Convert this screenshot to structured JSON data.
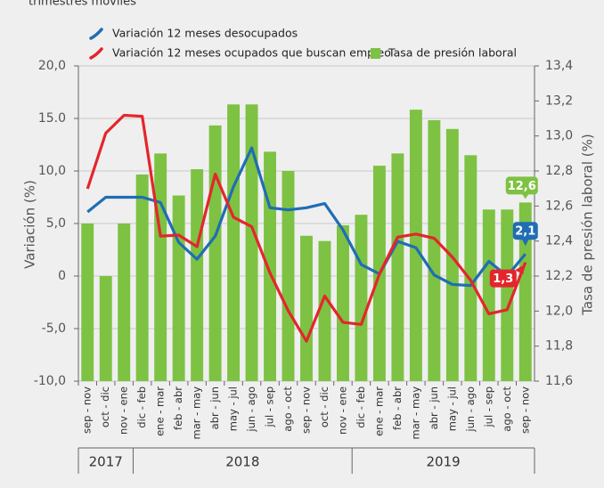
{
  "chart_data": {
    "type": "bar_line",
    "subtitle": "trimestres móviles",
    "y_label": "Variación (%)",
    "y2_label": "Tasa de presión laboral (%)",
    "categories": [
      "sep - nov",
      "oct - dic",
      "nov - ene",
      "dic - feb",
      "ene - mar",
      "feb - abr",
      "mar - may",
      "abr - jun",
      "may - jul",
      "jun - ago",
      "jul - sep",
      "ago - oct",
      "sep - nov",
      "oct - dic",
      "nov - ene",
      "dic - feb",
      "ene - mar",
      "feb - abr",
      "mar - may",
      "abr - jun",
      "may - jul",
      "jun - ago",
      "jul - sep",
      "ago - oct",
      "sep - nov"
    ],
    "x_groups": [
      "2017",
      "2018",
      "2019"
    ],
    "ylim": [
      -10,
      20
    ],
    "yticks": [
      {
        "value": 20,
        "label": "20,0"
      },
      {
        "value": 15,
        "label": "15.0"
      },
      {
        "value": 10,
        "label": "10,0"
      },
      {
        "value": 5,
        "label": "5,0"
      },
      0,
      {
        "value": -5,
        "label": "-5,0"
      },
      {
        "value": -10,
        "label": "-10,0"
      }
    ],
    "y2lim": [
      11.6,
      13.4
    ],
    "y2ticks": [
      {
        "value": 13.4,
        "label": "13,4"
      },
      {
        "value": 13.2,
        "label": "13,2"
      },
      {
        "value": 13.0,
        "label": "13,0"
      },
      {
        "value": 12.8,
        "label": "12,8"
      },
      {
        "value": 12.6,
        "label": "12,6"
      },
      {
        "value": 12.4,
        "label": "12,4"
      },
      {
        "value": 12.2,
        "label": "12,2"
      },
      {
        "value": 12.0,
        "label": "12,0"
      },
      {
        "value": 11.8,
        "label": "11,8"
      },
      {
        "value": 11.6,
        "label": "11,6"
      }
    ],
    "grid": true,
    "series": [
      {
        "name": "Variación 12 meses desocupados",
        "kind": "line",
        "color": "#1f6db5",
        "values": [
          6.1,
          7.5,
          7.5,
          7.5,
          7.0,
          3.2,
          1.6,
          3.8,
          8.5,
          12.2,
          6.5,
          6.3,
          6.5,
          6.9,
          4.4,
          1.1,
          0.2,
          3.3,
          2.7,
          0.1,
          -0.8,
          -0.9,
          1.4,
          0.0,
          2.1
        ],
        "value_labels": [
          null,
          null,
          null,
          null,
          null,
          null,
          null,
          null,
          null,
          null,
          null,
          null,
          null,
          null,
          null,
          null,
          null,
          null,
          null,
          null,
          null,
          null,
          null,
          null,
          "2,1"
        ]
      },
      {
        "name": "Variación 12 meses ocupados que buscan empleo",
        "kind": "line",
        "color": "#e3262b",
        "values": [
          8.3,
          13.6,
          15.3,
          15.2,
          3.8,
          3.9,
          2.8,
          9.7,
          5.6,
          4.7,
          0.3,
          -3.3,
          -6.2,
          -1.9,
          -4.4,
          -4.6,
          0.2,
          3.7,
          4.0,
          3.6,
          1.8,
          -0.4,
          -3.6,
          -3.2,
          1.3
        ],
        "value_labels": [
          null,
          null,
          null,
          null,
          null,
          null,
          null,
          null,
          null,
          null,
          null,
          null,
          null,
          null,
          null,
          null,
          null,
          null,
          null,
          null,
          null,
          null,
          null,
          null,
          "1,3"
        ]
      },
      {
        "name": "Tasa de presión laboral",
        "kind": "bar",
        "axis": "y2",
        "color": "#7dc242",
        "values": [
          12.5,
          12.2,
          12.5,
          12.78,
          12.9,
          12.66,
          12.81,
          13.06,
          13.18,
          13.18,
          12.91,
          12.8,
          12.43,
          12.4,
          12.49,
          12.55,
          12.83,
          12.9,
          13.15,
          13.09,
          13.04,
          12.89,
          12.58,
          12.58,
          12.62
        ],
        "value_labels": [
          null,
          null,
          null,
          null,
          null,
          null,
          null,
          null,
          null,
          null,
          null,
          null,
          null,
          null,
          null,
          null,
          null,
          null,
          null,
          null,
          null,
          null,
          null,
          null,
          "12,6"
        ]
      }
    ]
  }
}
